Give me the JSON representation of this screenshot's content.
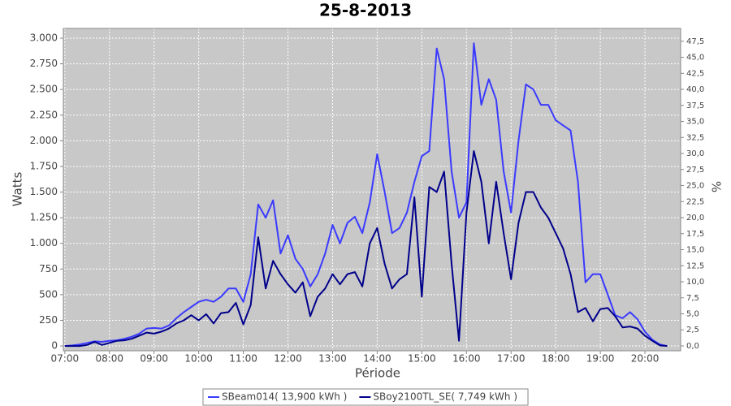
{
  "chart_data": {
    "type": "line",
    "title": "25-8-2013",
    "xlabel": "Période",
    "ylabel": "Watts",
    "y2label": "%",
    "x": [
      "07:00",
      "07:10",
      "07:20",
      "07:30",
      "07:40",
      "07:50",
      "08:00",
      "08:10",
      "08:20",
      "08:30",
      "08:40",
      "08:50",
      "09:00",
      "09:10",
      "09:20",
      "09:30",
      "09:40",
      "09:50",
      "10:00",
      "10:10",
      "10:20",
      "10:30",
      "10:40",
      "10:50",
      "11:00",
      "11:10",
      "11:20",
      "11:30",
      "11:40",
      "11:50",
      "12:00",
      "12:10",
      "12:20",
      "12:30",
      "12:40",
      "12:50",
      "13:00",
      "13:10",
      "13:20",
      "13:30",
      "13:40",
      "13:50",
      "14:00",
      "14:10",
      "14:20",
      "14:30",
      "14:40",
      "14:50",
      "15:00",
      "15:10",
      "15:20",
      "15:30",
      "15:40",
      "15:50",
      "16:00",
      "16:10",
      "16:20",
      "16:30",
      "16:40",
      "16:50",
      "17:00",
      "17:10",
      "17:20",
      "17:30",
      "17:40",
      "17:50",
      "18:00",
      "18:10",
      "18:20",
      "18:30",
      "18:40",
      "18:50",
      "19:00",
      "19:10",
      "19:20",
      "19:30",
      "19:40",
      "19:50",
      "20:00",
      "20:10",
      "20:20",
      "20:30"
    ],
    "series": [
      {
        "name": "SBeam014( 13,900 kWh )",
        "color": "#3a3aff",
        "values": [
          0,
          5,
          15,
          30,
          45,
          40,
          50,
          55,
          70,
          90,
          120,
          170,
          175,
          170,
          200,
          270,
          330,
          380,
          430,
          450,
          430,
          480,
          560,
          560,
          430,
          700,
          1380,
          1250,
          1420,
          900,
          1080,
          850,
          750,
          580,
          700,
          900,
          1180,
          1000,
          1200,
          1260,
          1100,
          1400,
          1870,
          1500,
          1100,
          1150,
          1300,
          1600,
          1850,
          1900,
          2900,
          2600,
          1700,
          1250,
          1400,
          2950,
          2350,
          2600,
          2400,
          1700,
          1300,
          2000,
          2550,
          2500,
          2350,
          2350,
          2200,
          2150,
          2100,
          1600,
          620,
          700,
          700,
          500,
          300,
          270,
          330,
          260,
          140,
          60,
          15,
          0
        ]
      },
      {
        "name": "SBoy2100TL_SE( 7,749 kWh )",
        "color": "#00008b",
        "values": [
          0,
          0,
          0,
          10,
          40,
          10,
          30,
          50,
          55,
          70,
          100,
          130,
          120,
          140,
          170,
          220,
          250,
          300,
          250,
          310,
          220,
          320,
          330,
          420,
          210,
          400,
          1060,
          560,
          830,
          700,
          600,
          520,
          620,
          290,
          480,
          560,
          700,
          600,
          700,
          720,
          580,
          1000,
          1150,
          800,
          560,
          650,
          700,
          1450,
          480,
          1550,
          1500,
          1700,
          800,
          50,
          1300,
          1900,
          1600,
          1000,
          1600,
          1100,
          650,
          1200,
          1500,
          1500,
          1350,
          1250,
          1100,
          950,
          700,
          330,
          370,
          240,
          360,
          370,
          290,
          180,
          190,
          170,
          100,
          50,
          5,
          0
        ]
      }
    ],
    "xlim": [
      "06:58",
      "20:48"
    ],
    "xticks": [
      "07:00",
      "08:00",
      "09:00",
      "10:00",
      "11:00",
      "12:00",
      "13:00",
      "14:00",
      "15:00",
      "16:00",
      "17:00",
      "18:00",
      "19:00",
      "20:00"
    ],
    "ylim": [
      -47,
      3095
    ],
    "yticks": [
      0,
      250,
      500,
      750,
      {
        "value": 1000,
        "label": "1.000"
      },
      {
        "value": 1250,
        "label": "1.250"
      },
      {
        "value": 1500,
        "label": "1.500"
      },
      {
        "value": 1750,
        "label": "1.750"
      },
      {
        "value": 2000,
        "label": "2.000"
      },
      {
        "value": 2250,
        "label": "2.250"
      },
      {
        "value": 2500,
        "label": "2.500"
      },
      {
        "value": 2750,
        "label": "2.750"
      },
      {
        "value": 3000,
        "label": "3.000"
      }
    ],
    "y2lim": [
      -0.76,
      49.5
    ],
    "y2ticks": [
      {
        "value": 0,
        "label": "0,0"
      },
      {
        "value": 2.5,
        "label": "2,5"
      },
      {
        "value": 5,
        "label": "5,0"
      },
      {
        "value": 7.5,
        "label": "7,5"
      },
      {
        "value": 10,
        "label": "10,0"
      },
      {
        "value": 12.5,
        "label": "12,5"
      },
      {
        "value": 15,
        "label": "15,0"
      },
      {
        "value": 17.5,
        "label": "17,5"
      },
      {
        "value": 20,
        "label": "20,0"
      },
      {
        "value": 22.5,
        "label": "22,5"
      },
      {
        "value": 25,
        "label": "25,0"
      },
      {
        "value": 27.5,
        "label": "27,5"
      },
      {
        "value": 30,
        "label": "30,0"
      },
      {
        "value": 32.5,
        "label": "32,5"
      },
      {
        "value": 35,
        "label": "35,0"
      },
      {
        "value": 37.5,
        "label": "37,5"
      },
      {
        "value": 40,
        "label": "40,0"
      },
      {
        "value": 42.5,
        "label": "42,5"
      },
      {
        "value": 45,
        "label": "45,0"
      },
      {
        "value": 47.5,
        "label": "47,5"
      }
    ],
    "grid": true,
    "legend": "bottom",
    "plot_background": "#c8c8c8"
  }
}
